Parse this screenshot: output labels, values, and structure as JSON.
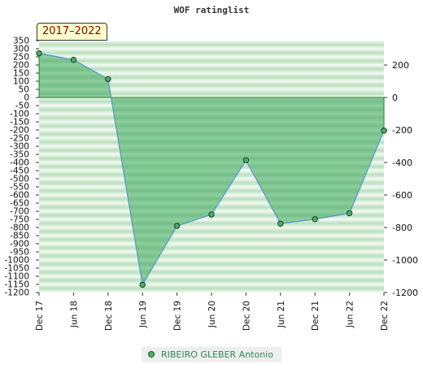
{
  "badge": "2017–2022",
  "chart_data": {
    "type": "area",
    "title": "WOF ratinglist",
    "categories": [
      "Dec 17",
      "Jun 18",
      "Dec 18",
      "Jun 19",
      "Dec 19",
      "Jun 20",
      "Dec 20",
      "Jun 21",
      "Dec 21",
      "Jun 22",
      "Dec 22"
    ],
    "series": [
      {
        "name": "RIBEIRO GLEBER Antonio",
        "values": [
          272,
          232,
          113,
          -1152,
          -790,
          -720,
          -386,
          -776,
          -749,
          -712,
          -204
        ]
      }
    ],
    "left_axis": {
      "ylim": [
        -1200,
        350
      ],
      "step": 50
    },
    "right_axis": {
      "ylim": [
        -1200,
        300
      ],
      "step": 200
    },
    "legend_position": "bottom-center",
    "grid": true,
    "colors": {
      "fill": "#3aa85a",
      "line": "#5b9bd5",
      "marker": "#4caf6a",
      "bands_a": "#c8e6c9",
      "bands_b": "#f3faf3"
    }
  }
}
